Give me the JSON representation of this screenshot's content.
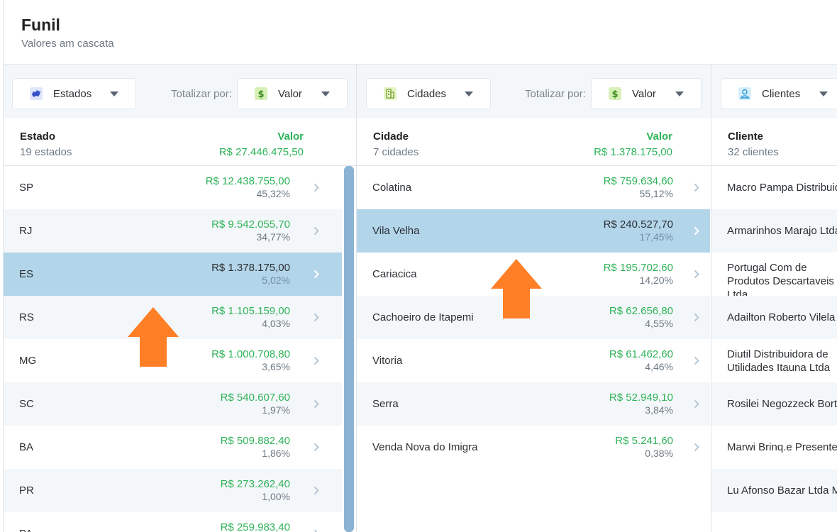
{
  "header": {
    "title": "Funil",
    "subtitle": "Valores am cascata"
  },
  "colors": {
    "green": "#2eb358",
    "selected_row": "#b3d5ea",
    "arrow": "#ff7f27",
    "scrollbar": "#8bb4d4"
  },
  "panels": [
    {
      "dropdown": {
        "label": "Estados",
        "icon": "map-icon"
      },
      "totalizar_label": "Totalizar por:",
      "totalizar_value": {
        "label": "Valor",
        "icon": "dollar-icon"
      },
      "column": {
        "name": "Estado",
        "count": "19 estados",
        "value_header": "Valor",
        "total": "R$ 27.446.475,50"
      },
      "rows": [
        {
          "name": "SP",
          "value": "R$ 12.438.755,00",
          "pct": "45,32%"
        },
        {
          "name": "RJ",
          "value": "R$ 9.542.055,70",
          "pct": "34,77%"
        },
        {
          "name": "ES",
          "value": "R$ 1.378.175,00",
          "pct": "5,02%",
          "selected": true
        },
        {
          "name": "RS",
          "value": "R$ 1.105.159,00",
          "pct": "4,03%"
        },
        {
          "name": "MG",
          "value": "R$ 1.000.708,80",
          "pct": "3,65%"
        },
        {
          "name": "SC",
          "value": "R$ 540.607,60",
          "pct": "1,97%"
        },
        {
          "name": "BA",
          "value": "R$ 509.882,40",
          "pct": "1,86%"
        },
        {
          "name": "PR",
          "value": "R$ 273.262,40",
          "pct": "1,00%"
        },
        {
          "name": "PA",
          "value": "R$ 259.983,40",
          "pct": ""
        }
      ]
    },
    {
      "dropdown": {
        "label": "Cidades",
        "icon": "building-icon"
      },
      "totalizar_label": "Totalizar por:",
      "totalizar_value": {
        "label": "Valor",
        "icon": "dollar-icon"
      },
      "column": {
        "name": "Cidade",
        "count": "7 cidades",
        "value_header": "Valor",
        "total": "R$ 1.378.175,00"
      },
      "rows": [
        {
          "name": "Colatina",
          "value": "R$ 759.634,60",
          "pct": "55,12%"
        },
        {
          "name": "Vila Velha",
          "value": "R$ 240.527,70",
          "pct": "17,45%",
          "selected": true
        },
        {
          "name": "Cariacica",
          "value": "R$ 195.702,60",
          "pct": "14,20%"
        },
        {
          "name": "Cachoeiro de Itapemi",
          "value": "R$ 62.656,80",
          "pct": "4,55%"
        },
        {
          "name": "Vitoria",
          "value": "R$ 61.462,60",
          "pct": "4,46%"
        },
        {
          "name": "Serra",
          "value": "R$ 52.949,10",
          "pct": "3,84%"
        },
        {
          "name": "Venda Nova do Imigra",
          "value": "R$ 5.241,60",
          "pct": "0,38%"
        }
      ]
    },
    {
      "dropdown": {
        "label": "Clientes",
        "icon": "user-icon"
      },
      "column": {
        "name": "Cliente",
        "count": "32 clientes"
      },
      "rows": [
        {
          "name": "Macro Pampa Distribuidora"
        },
        {
          "name": "Armarinhos Marajo Ltda"
        },
        {
          "name": "Portugal Com de Produtos Descartaveis Ltda"
        },
        {
          "name": "Adailton Roberto Vilela"
        },
        {
          "name": "Diutil Distribuidora de Utilidades Itauna Ltda"
        },
        {
          "name": "Rosilei Negozzeck Borto"
        },
        {
          "name": "Marwi Brinq.e Presentes"
        },
        {
          "name": "Lu Afonso Bazar Ltda Me"
        }
      ]
    }
  ]
}
